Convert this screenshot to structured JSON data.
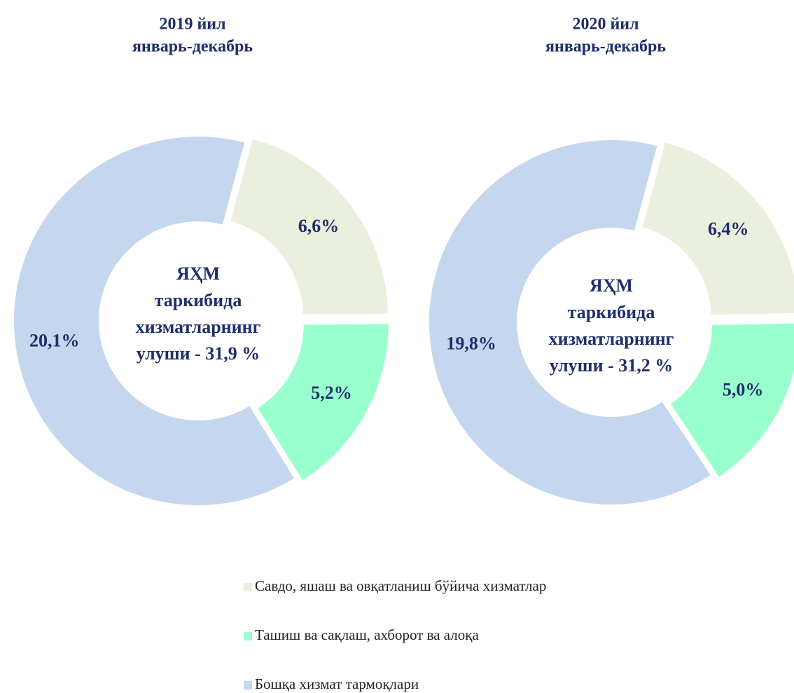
{
  "legend": {
    "items": [
      {
        "name": "Савдо, яшаш ва овқатланиш бўйича хизматлар",
        "color": "#ebefdd"
      },
      {
        "name": "Ташиш ва сақлаш, ахборот ва алоқа",
        "color": "#99ffcc"
      },
      {
        "name": "Бошқа хизмат тармоқлари",
        "color": "#c5d6ef"
      }
    ]
  },
  "chart_data": [
    {
      "type": "pie",
      "title": "2019 йил",
      "subtitle": "январь-декабрь",
      "values": [
        6.6,
        5.2,
        20.1
      ],
      "value_labels": [
        "6,6%",
        "5,2%",
        "20,1%"
      ],
      "annotation": [
        "ЯҲМ",
        "таркибида",
        "хизматларнинг",
        "улуши - 31,9 %"
      ]
    },
    {
      "type": "pie",
      "title": "2020 йил",
      "subtitle": "январь-декабрь",
      "values": [
        6.4,
        5.0,
        19.8
      ],
      "value_labels": [
        "6,4%",
        "5,0%",
        "19,8%"
      ],
      "annotation": [
        "ЯҲМ",
        "таркибида",
        "хизматларнинг",
        "улуши - 31,2 %"
      ]
    }
  ]
}
